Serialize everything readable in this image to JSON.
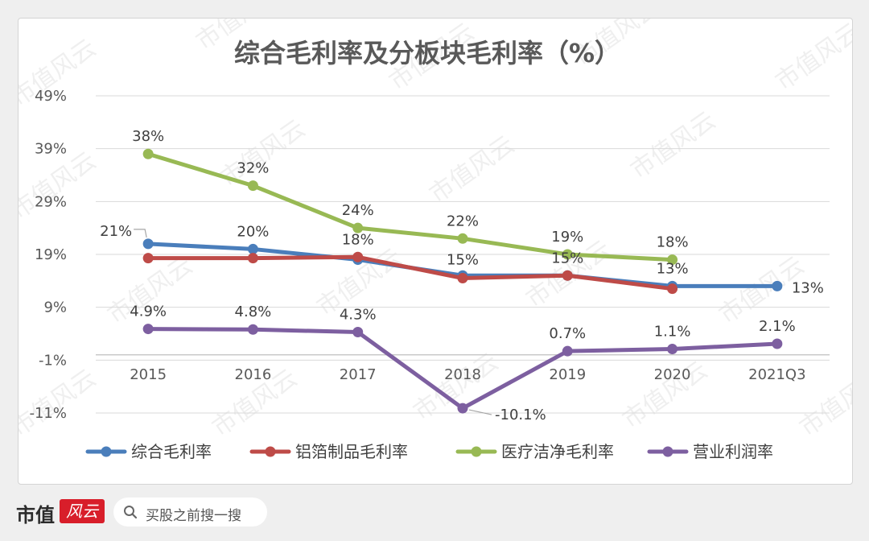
{
  "chart_data": {
    "type": "line",
    "title": "综合毛利率及分板块毛利率（%）",
    "categories": [
      "2015",
      "2016",
      "2017",
      "2018",
      "2019",
      "2020",
      "2021Q3"
    ],
    "y_ticks": [
      "49%",
      "39%",
      "29%",
      "19%",
      "9%",
      "-1%",
      "-11%"
    ],
    "ylim": [
      -11,
      49
    ],
    "grid": true,
    "legend_position": "bottom",
    "series": [
      {
        "name": "综合毛利率",
        "color": "#4a7ebb",
        "values": [
          21,
          20,
          18,
          15,
          15,
          13,
          13
        ],
        "labels": [
          "21%",
          "20%",
          "",
          "15%",
          "15%",
          "13%",
          "13%"
        ]
      },
      {
        "name": "铝箔制品毛利率",
        "color": "#be4b48",
        "values": [
          18.3,
          18.3,
          18.5,
          14.5,
          15.0,
          12.5,
          null
        ],
        "labels": [
          "",
          "",
          "18%",
          "",
          "",
          "",
          ""
        ]
      },
      {
        "name": "医疗洁净毛利率",
        "color": "#98b954",
        "values": [
          38,
          32,
          24,
          22,
          19,
          18,
          null
        ],
        "labels": [
          "38%",
          "32%",
          "24%",
          "22%",
          "19%",
          "18%",
          ""
        ]
      },
      {
        "name": "营业利润率",
        "color": "#7d5fa0",
        "values": [
          4.9,
          4.8,
          4.3,
          -10.1,
          0.7,
          1.1,
          2.1
        ],
        "labels": [
          "4.9%",
          "4.8%",
          "4.3%",
          "-10.1%",
          "0.7%",
          "1.1%",
          "2.1%"
        ]
      }
    ]
  },
  "watermark": "市值风云",
  "footer": {
    "brand": "市值",
    "brand_logo_text": "风云",
    "search_icon": "search-icon",
    "search_text": "买股之前搜一搜"
  }
}
